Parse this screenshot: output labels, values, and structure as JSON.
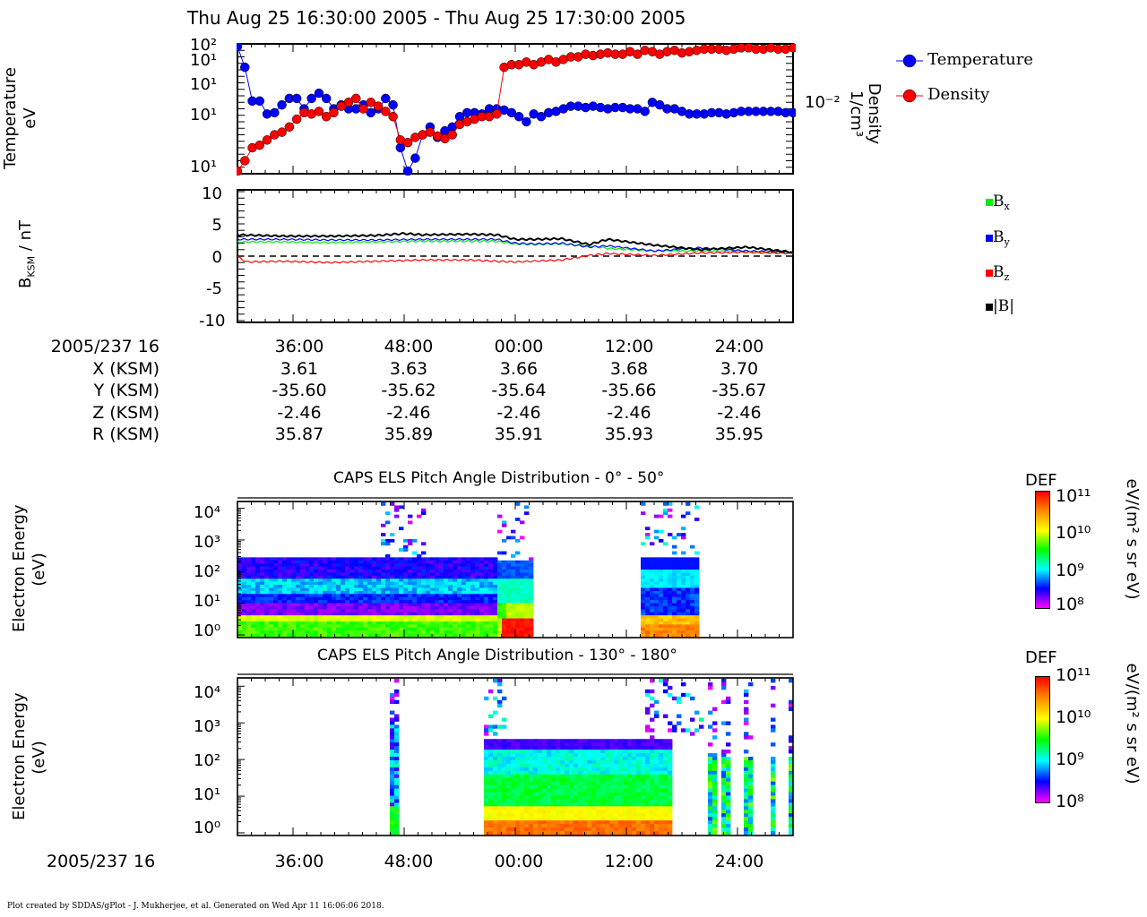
{
  "header": {
    "title": "Thu Aug 25 16:30:00 2005 - Thu Aug 25 17:30:00 2005"
  },
  "panel1": {
    "ylabel": [
      "Temperature",
      "eV"
    ],
    "ylabel_right": [
      "Density",
      "1/cm³"
    ],
    "ytick_labels": [
      "10²",
      "10¹",
      "10¹",
      "10¹",
      "10¹"
    ],
    "ytick_right_label": "10⁻²",
    "legend": [
      {
        "label": "Temperature",
        "color": "#0000ff"
      },
      {
        "label": "Density",
        "color": "#ff0000"
      }
    ]
  },
  "panel2": {
    "ylabel": "B",
    "ylabel_sub": "KSM",
    "ylabel_unit": " / nT",
    "yticks": [
      10,
      5,
      0,
      -5,
      -10
    ],
    "legend": [
      {
        "base": "B",
        "sub": "x",
        "color": "#00ee00"
      },
      {
        "base": "B",
        "sub": "y",
        "color": "#0000ff"
      },
      {
        "base": "B",
        "sub": "z",
        "color": "#ff0000"
      },
      {
        "base": "|B|",
        "sub": "",
        "color": "#000000"
      }
    ]
  },
  "ephemeris": {
    "rows": [
      {
        "label": "2005/237 16",
        "values": [
          "36:00",
          "48:00",
          "00:00",
          "12:00",
          "24:00"
        ]
      },
      {
        "label": "X (KSM)",
        "values": [
          "3.61",
          "3.63",
          "3.66",
          "3.68",
          "3.70"
        ]
      },
      {
        "label": "Y (KSM)",
        "values": [
          "-35.60",
          "-35.62",
          "-35.64",
          "-35.66",
          "-35.67"
        ]
      },
      {
        "label": "Z (KSM)",
        "values": [
          "-2.46",
          "-2.46",
          "-2.46",
          "-2.46",
          "-2.46"
        ]
      },
      {
        "label": "R (KSM)",
        "values": [
          "35.87",
          "35.89",
          "35.91",
          "35.93",
          "35.95"
        ]
      }
    ]
  },
  "spec1": {
    "title": "CAPS ELS Pitch Angle Distribution - 0° - 50°",
    "ylabel": [
      "Electron Energy",
      "(eV)"
    ],
    "ytick_labels": [
      "10⁴",
      "10³",
      "10²",
      "10¹",
      "10⁰"
    ],
    "colorbar": {
      "title": "DEF",
      "unit": "eV/(m² s sr eV)",
      "labels": [
        "10¹¹",
        "10¹⁰",
        "10⁹",
        "10⁸"
      ]
    }
  },
  "spec2": {
    "title": "CAPS ELS Pitch Angle Distribution - 130° - 180°",
    "ylabel": [
      "Electron Energy",
      "(eV)"
    ],
    "ytick_labels": [
      "10⁴",
      "10³",
      "10²",
      "10¹",
      "10⁰"
    ],
    "colorbar": {
      "title": "DEF",
      "unit": "eV/(m² s sr eV)",
      "labels": [
        "10¹¹",
        "10¹⁰",
        "10⁹",
        "10⁸"
      ]
    }
  },
  "bottom_axis": {
    "label": "2005/237 16",
    "ticks": [
      "36:00",
      "48:00",
      "00:00",
      "12:00",
      "24:00"
    ]
  },
  "footer": "Plot created by SDDAS/gPlot - J. Mukherjee, et al.  Generated on Wed Apr 11 16:06:06 2018.",
  "chart_data": [
    {
      "type": "scatter",
      "title": "Thu Aug 25 16:30:00 2005 - Thu Aug 25 17:30:00 2005",
      "x_unit": "minutes after 16:30",
      "xlim": [
        0,
        60
      ],
      "series": [
        {
          "name": "Temperature",
          "color": "#0000ff",
          "x": [
            0,
            0.8,
            1.6,
            2.4,
            3.2,
            4,
            4.8,
            5.6,
            6.4,
            7.2,
            8,
            8.8,
            9.6,
            10.4,
            11.2,
            12,
            12.8,
            13.6,
            14.4,
            15.2,
            16,
            16.8,
            17.6,
            18.4,
            19.2,
            20,
            20.8,
            21.6,
            22.4,
            23.2,
            24,
            24.8,
            25.6,
            26.4,
            27.2,
            28,
            28.8,
            29.6,
            30.4,
            31.2,
            32,
            32.8,
            33.6,
            34.4,
            35.2,
            36,
            36.8,
            37.6,
            38.4,
            39.2,
            40,
            40.8,
            41.6,
            42.4,
            43.2,
            44,
            44.8,
            45.6,
            46.4,
            47.2,
            48,
            48.8,
            49.6,
            50.4,
            51.2,
            52,
            52.8,
            53.6,
            54.4,
            55.2,
            56,
            56.8,
            57.6,
            58.4,
            59.2,
            60
          ],
          "yfrac": [
            0.98,
            0.82,
            0.56,
            0.56,
            0.46,
            0.47,
            0.53,
            0.58,
            0.58,
            0.5,
            0.58,
            0.62,
            0.58,
            0.5,
            0.53,
            0.5,
            0.5,
            0.53,
            0.47,
            0.5,
            0.58,
            0.53,
            0.2,
            0.02,
            0.12,
            0.3,
            0.36,
            0.28,
            0.33,
            0.36,
            0.44,
            0.47,
            0.47,
            0.46,
            0.5,
            0.5,
            0.49,
            0.47,
            0.44,
            0.4,
            0.46,
            0.44,
            0.47,
            0.48,
            0.5,
            0.52,
            0.52,
            0.51,
            0.52,
            0.51,
            0.5,
            0.51,
            0.51,
            0.5,
            0.5,
            0.48,
            0.55,
            0.53,
            0.5,
            0.5,
            0.48,
            0.46,
            0.46,
            0.46,
            0.47,
            0.47,
            0.46,
            0.47,
            0.48,
            0.48,
            0.48,
            0.48,
            0.48,
            0.48,
            0.47,
            0.47
          ]
        },
        {
          "name": "Density",
          "color": "#ff0000",
          "x": [
            0,
            0.8,
            1.6,
            2.4,
            3.2,
            4,
            4.8,
            5.6,
            6.4,
            7.2,
            8,
            8.8,
            9.6,
            10.4,
            11.2,
            12,
            12.8,
            13.6,
            14.4,
            15.2,
            16,
            16.8,
            17.6,
            18.4,
            19.2,
            20,
            20.8,
            21.6,
            22.4,
            23.2,
            24,
            24.8,
            25.6,
            26.4,
            27.2,
            28,
            28.8,
            29.6,
            30.4,
            31.2,
            32,
            32.8,
            33.6,
            34.4,
            35.2,
            36,
            36.8,
            37.6,
            38.4,
            39.2,
            40,
            40.8,
            41.6,
            42.4,
            43.2,
            44,
            44.8,
            45.6,
            46.4,
            47.2,
            48,
            48.8,
            49.6,
            50.4,
            51.2,
            52,
            52.8,
            53.6,
            54.4,
            55.2,
            56,
            56.8,
            57.6,
            58.4,
            59.2,
            60
          ],
          "yfrac": [
            0.02,
            0.1,
            0.2,
            0.22,
            0.26,
            0.3,
            0.32,
            0.36,
            0.42,
            0.47,
            0.46,
            0.48,
            0.44,
            0.47,
            0.52,
            0.55,
            0.58,
            0.5,
            0.55,
            0.52,
            0.48,
            0.44,
            0.26,
            0.24,
            0.28,
            0.3,
            0.32,
            0.29,
            0.27,
            0.3,
            0.38,
            0.4,
            0.42,
            0.44,
            0.44,
            0.46,
            0.82,
            0.84,
            0.84,
            0.86,
            0.84,
            0.86,
            0.88,
            0.86,
            0.88,
            0.9,
            0.9,
            0.92,
            0.91,
            0.92,
            0.93,
            0.92,
            0.92,
            0.94,
            0.92,
            0.95,
            0.94,
            0.92,
            0.94,
            0.95,
            0.93,
            0.94,
            0.95,
            0.96,
            0.96,
            0.96,
            0.95,
            0.96,
            0.97,
            0.97,
            0.96,
            0.96,
            0.97,
            0.96,
            0.96,
            0.97
          ]
        }
      ]
    },
    {
      "type": "line",
      "xlim": [
        0,
        60
      ],
      "ylim": [
        -10,
        10
      ],
      "ylabel": "BKSM / nT",
      "series": [
        {
          "name": "Bx",
          "color": "#00ee00",
          "x": [
            0,
            5,
            10,
            15,
            20,
            25,
            28,
            30,
            32,
            35,
            38,
            40,
            45,
            50,
            55,
            60
          ],
          "y": [
            2.2,
            2.2,
            2.1,
            2.2,
            2.3,
            2.3,
            2.3,
            1.9,
            1.8,
            1.9,
            1.6,
            1.2,
            0.8,
            0.8,
            0.7,
            0.5
          ]
        },
        {
          "name": "By",
          "color": "#0000ff",
          "x": [
            0,
            5,
            10,
            15,
            20,
            25,
            28,
            30,
            32,
            35,
            38,
            40,
            45,
            50,
            55,
            60
          ],
          "y": [
            2.6,
            2.6,
            2.5,
            2.5,
            2.6,
            2.6,
            2.6,
            2.0,
            1.9,
            2.0,
            1.4,
            1.6,
            0.8,
            1.3,
            0.8,
            0.6
          ]
        },
        {
          "name": "Bz",
          "color": "#ff0000",
          "x": [
            0,
            1,
            5,
            10,
            15,
            20,
            25,
            28,
            30,
            35,
            38,
            40,
            45,
            50,
            55,
            60
          ],
          "y": [
            -0.1,
            -0.9,
            -0.8,
            -1.0,
            -0.8,
            -0.6,
            -0.6,
            -0.8,
            -0.9,
            -0.6,
            0.1,
            0.4,
            0.1,
            0.5,
            0.6,
            0.4
          ]
        },
        {
          "name": "|B|",
          "color": "#000000",
          "x": [
            0,
            5,
            10,
            15,
            18,
            20,
            25,
            28,
            30,
            32,
            35,
            38,
            40,
            45,
            50,
            55,
            60
          ],
          "y": [
            3.3,
            3.1,
            3.1,
            3.2,
            3.5,
            3.3,
            3.4,
            3.3,
            2.6,
            2.6,
            2.7,
            1.8,
            2.6,
            1.7,
            1.0,
            1.4,
            0.6
          ]
        }
      ]
    },
    {
      "type": "heatmap",
      "title": "CAPS ELS Pitch Angle Distribution - 0° - 50°",
      "ylabel": "Electron Energy (eV)"
    },
    {
      "type": "heatmap",
      "title": "CAPS ELS Pitch Angle Distribution - 130° - 180°",
      "ylabel": "Electron Energy (eV)"
    }
  ]
}
